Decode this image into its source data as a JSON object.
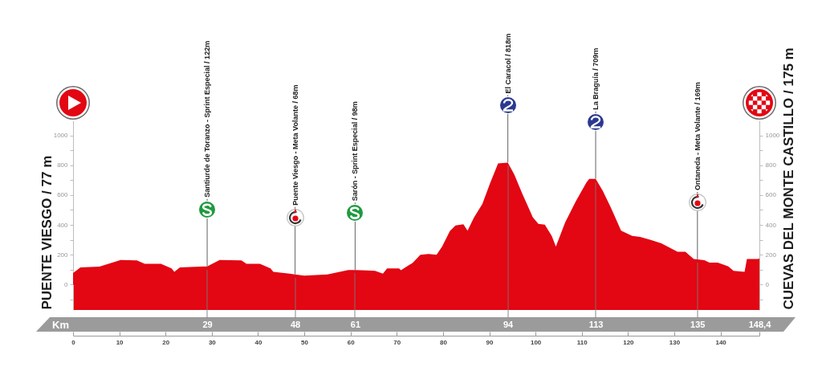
{
  "chart_data": {
    "type": "area",
    "x": [
      0,
      1.6,
      5.7,
      10.3,
      13.8,
      15.5,
      19,
      21.3,
      21.9,
      23.1,
      29,
      31.7,
      36.4,
      37.5,
      40.4,
      42.7,
      43.3,
      46.8,
      48,
      50,
      55,
      59.5,
      61,
      63.6,
      65.3,
      67,
      67.9,
      70.5,
      70.9,
      73.4,
      75.1,
      76.9,
      78.6,
      79.8,
      81.5,
      82.7,
      84.4,
      85.3,
      86.7,
      88.5,
      90.2,
      91.9,
      94,
      95.4,
      97.1,
      99.4,
      100.6,
      102,
      103.5,
      104.4,
      106.4,
      108.7,
      111,
      111.6,
      113,
      114.5,
      116.2,
      118.5,
      120.9,
      122.6,
      124.9,
      127.2,
      130.7,
      132.4,
      134.2,
      135,
      136.5,
      137.6,
      139.4,
      141.7,
      142.8,
      145.2,
      145.7,
      148,
      148.4
    ],
    "series": [
      {
        "color": "#e30613",
        "values": [
          77,
          115,
          120,
          165,
          162,
          140,
          140,
          108,
          85,
          115,
          122,
          165,
          162,
          140,
          140,
          108,
          85,
          74,
          68,
          60,
          68,
          98,
          98,
          95,
          92,
          74,
          108,
          108,
          97,
          145,
          200,
          205,
          200,
          255,
          360,
          397,
          405,
          362,
          450,
          540,
          682,
          812,
          818,
          738,
          612,
          452,
          407,
          402,
          327,
          255,
          416,
          558,
          684,
          709,
          709,
          630,
          522,
          362,
          327,
          320,
          300,
          277,
          220,
          220,
          172,
          169,
          163,
          148,
          148,
          122,
          92,
          86,
          172,
          172,
          175
        ]
      }
    ],
    "xlim": [
      0,
      148.4
    ],
    "xticks": [
      0,
      10,
      20,
      30,
      40,
      50,
      60,
      70,
      80,
      90,
      100,
      110,
      120,
      130,
      140,
      {
        "value": 148.4,
        "label": null
      }
    ],
    "x2lim": [
      0,
      148.4
    ],
    "x2ticks": [
      29,
      48,
      61,
      94,
      113,
      135,
      {
        "value": 148.4,
        "label": "148,4"
      }
    ],
    "x2label": "Km",
    "ylim": [
      -170,
      1100
    ],
    "yticks": [
      {
        "value": -100,
        "label": null
      },
      0,
      {
        "value": 100,
        "label": null
      },
      200,
      {
        "value": 300,
        "label": null
      },
      400,
      {
        "value": 500,
        "label": null
      },
      600,
      {
        "value": 700,
        "label": null
      },
      800,
      {
        "value": 900,
        "label": null
      },
      1000
    ],
    "y2lim": [
      -170,
      1100
    ],
    "y2ticks": [
      {
        "value": -100,
        "label": null
      },
      0,
      {
        "value": 100,
        "label": null
      },
      200,
      {
        "value": 300,
        "label": null
      },
      400,
      {
        "value": 500,
        "label": null
      },
      600,
      {
        "value": 700,
        "label": null
      },
      800,
      {
        "value": 900,
        "label": null
      },
      1000
    ],
    "ylabel": "PUENTE VIESGO / 77 m",
    "y2label": "CUEVAS DEL MONTE CASTILLO / 175 m",
    "annotations": [
      {
        "text": "Santiurde de Toranzo - Sprint Especial / 122m",
        "x": 29,
        "y": 122
      },
      {
        "text": "Puente Viesgo - Meta Volante / 68m",
        "x": 48,
        "y": 68
      },
      {
        "text": "Sarón - Sprint Especial / 98m",
        "x": 61,
        "y": 98
      },
      {
        "text": "El Caracol / 818m",
        "x": 94,
        "y": 818
      },
      {
        "text": "La Braguía / 709m",
        "x": 113,
        "y": 709
      },
      {
        "text": "Ontaneda - Meta Volante / 169m",
        "x": 135,
        "y": 169
      }
    ]
  }
}
